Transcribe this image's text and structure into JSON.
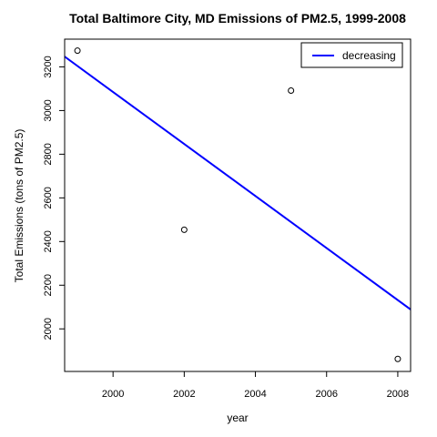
{
  "chart_data": {
    "type": "scatter",
    "title": "Total Baltimore City, MD Emissions of PM2.5, 1999-2008",
    "xlabel": "year",
    "ylabel": "Total Emissions (tons of PM2.5)",
    "xlim": [
      1998.64,
      2008.36
    ],
    "ylim": [
      1805,
      3327
    ],
    "xticks": [
      2000,
      2002,
      2004,
      2006,
      2008
    ],
    "yticks": [
      2000,
      2200,
      2400,
      2600,
      2800,
      3000,
      3200
    ],
    "grid": false,
    "legend_position": "top-right",
    "points": [
      {
        "x": 1999,
        "y": 3274.18
      },
      {
        "x": 2002,
        "y": 2453.92
      },
      {
        "x": 2005,
        "y": 3091.35
      },
      {
        "x": 2008,
        "y": 1862.28
      }
    ],
    "trend_line": {
      "name": "decreasing",
      "color": "#0000ff",
      "x": [
        1998.64,
        2008.36
      ],
      "y": [
        3247,
        2089
      ]
    }
  }
}
